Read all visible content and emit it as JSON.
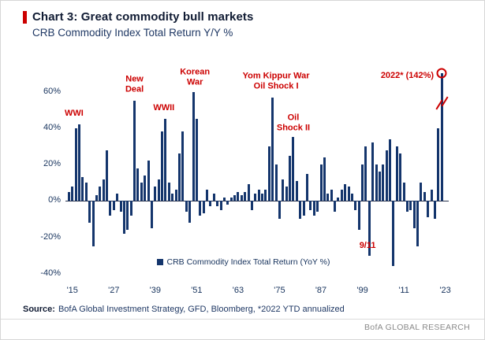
{
  "header": {
    "title": "Chart 3: Great commodity bull markets",
    "subtitle": "CRB Commodity Index Total Return Y/Y %"
  },
  "legend": {
    "label": "CRB Commodity Index Total Return (YoY %)"
  },
  "source": {
    "label": "Source:",
    "text": "BofA Global Investment Strategy, GFD, Bloomberg, *2022 YTD annualized"
  },
  "footer": {
    "brand": "BofA GLOBAL RESEARCH"
  },
  "colors": {
    "bar": "#14356c",
    "annotation_red": "#cc0000",
    "axis_text": "#16325c"
  },
  "chart_data": {
    "type": "bar",
    "title": "Chart 3: Great commodity bull markets",
    "subtitle": "CRB Commodity Index Total Return Y/Y %",
    "ylabel": "YoY %",
    "unit": "%",
    "ylim": [
      -44,
      78
    ],
    "display_cap": 70,
    "grid": false,
    "legend_position": "bottom-center",
    "start_year": 1914,
    "x_range": [
      1913,
      2024
    ],
    "y_ticks": [
      60,
      40,
      20,
      0,
      -20,
      -40
    ],
    "x_ticks": [
      {
        "year": 1915,
        "label": "'15"
      },
      {
        "year": 1927,
        "label": "'27"
      },
      {
        "year": 1939,
        "label": "'39"
      },
      {
        "year": 1951,
        "label": "'51"
      },
      {
        "year": 1963,
        "label": "'63"
      },
      {
        "year": 1975,
        "label": "'75"
      },
      {
        "year": 1987,
        "label": "'87"
      },
      {
        "year": 1999,
        "label": "'99"
      },
      {
        "year": 2011,
        "label": "'11"
      },
      {
        "year": 2023,
        "label": "'23"
      }
    ],
    "values": [
      5,
      8,
      40,
      42,
      13,
      10,
      -12,
      -25,
      3,
      8,
      12,
      28,
      -8,
      -5,
      4,
      -6,
      -18,
      -16,
      -8,
      55,
      18,
      10,
      14,
      22,
      -15,
      8,
      12,
      38,
      45,
      10,
      4,
      6,
      26,
      38,
      -6,
      -12,
      60,
      45,
      -8,
      -7,
      6,
      -3,
      4,
      -3,
      -5,
      2,
      -2,
      2,
      3,
      5,
      3,
      5,
      9,
      -5,
      4,
      6,
      4,
      6,
      30,
      57,
      20,
      -10,
      12,
      8,
      25,
      35,
      11,
      -10,
      -8,
      15,
      -5,
      -8,
      -6,
      20,
      24,
      4,
      6,
      -6,
      2,
      6,
      9,
      8,
      4,
      -5,
      -16,
      20,
      30,
      -30,
      32,
      20,
      16,
      20,
      28,
      34,
      -36,
      30,
      26,
      10,
      -6,
      -5,
      -15,
      -25,
      10,
      5,
      -9,
      6,
      -10,
      40,
      142
    ],
    "highlight": {
      "year": 2022,
      "actual_value": 142,
      "note": "2022* (142%)",
      "axis_break": true
    },
    "annotations": [
      {
        "lines": [
          "WWI"
        ],
        "year": 1915.5,
        "y": 45,
        "anchor": "bottom"
      },
      {
        "lines": [
          "New",
          "Deal"
        ],
        "year": 1933,
        "y": 58,
        "anchor": "bottom"
      },
      {
        "lines": [
          "WWII"
        ],
        "year": 1941.5,
        "y": 48,
        "anchor": "bottom"
      },
      {
        "lines": [
          "Korean",
          "War"
        ],
        "year": 1950.5,
        "y": 62,
        "anchor": "bottom"
      },
      {
        "lines": [
          "Yom Kippur War",
          "Oil Shock I"
        ],
        "year": 1974,
        "y": 60,
        "anchor": "bottom"
      },
      {
        "lines": [
          "Oil",
          "Shock II"
        ],
        "year": 1979,
        "y": 37,
        "anchor": "bottom"
      },
      {
        "lines": [
          "2022* (142%)"
        ],
        "year": 2012,
        "y": 66,
        "anchor": "bottom"
      },
      {
        "lines": [
          "9/11"
        ],
        "year": 2000.5,
        "y": -22,
        "anchor": "top"
      }
    ]
  }
}
